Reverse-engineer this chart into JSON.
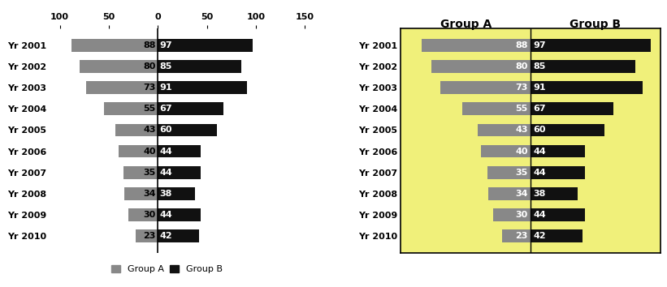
{
  "years": [
    "Yr 2001",
    "Yr 2002",
    "Yr 2003",
    "Yr 2004",
    "Yr 2005",
    "Yr 2006",
    "Yr 2007",
    "Yr 2008",
    "Yr 2009",
    "Yr 2010"
  ],
  "group_a": [
    88,
    80,
    73,
    55,
    43,
    40,
    35,
    34,
    30,
    23
  ],
  "group_b": [
    97,
    85,
    91,
    67,
    60,
    44,
    44,
    38,
    44,
    42
  ],
  "color_a": "#888888",
  "color_b": "#111111",
  "bg_color_right": "#f0f07a",
  "xlim_left": [
    -110,
    155
  ],
  "xticks_left": [
    -100,
    -50,
    0,
    50,
    100,
    150
  ],
  "xticklabels_left": [
    "100",
    "50",
    "0",
    "50",
    "100",
    "150"
  ],
  "legend_label_a": "Group A",
  "legend_label_b": "Group B",
  "label_fontsize": 8,
  "tick_fontsize": 8,
  "header_fontsize": 10
}
